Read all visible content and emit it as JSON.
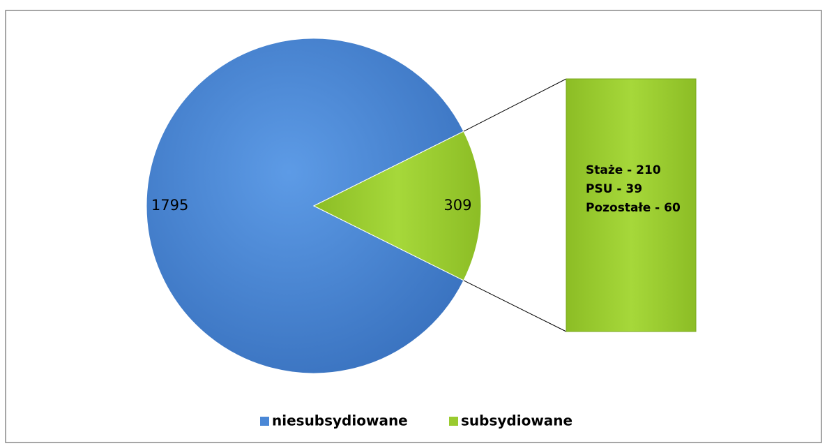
{
  "chart_data": {
    "type": "pie",
    "categories": [
      "niesubsydiowane",
      "subsydiowane"
    ],
    "values": [
      1795,
      309
    ],
    "colors": [
      "#4a87d6",
      "#9acb2f"
    ],
    "breakdown": [
      "Staże - 210",
      "PSU - 39",
      "Pozostałe - 60"
    ],
    "legend": "bottom"
  }
}
